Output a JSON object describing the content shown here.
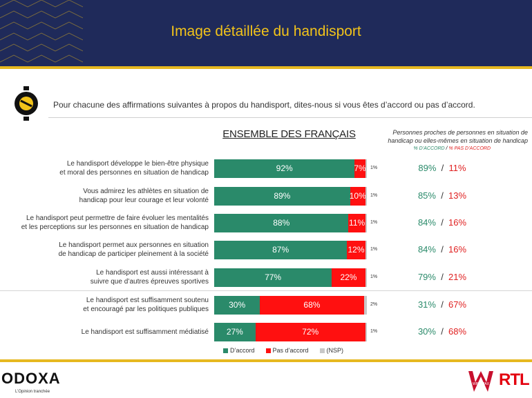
{
  "title": "Image détaillée du handisport",
  "question": "Pour chacune des affirmations suivantes à propos du handisport, dites-nous si vous êtes d’accord ou pas d’accord.",
  "section_heading": "ENSEMBLE DES FRANÇAIS",
  "proches_heading": "Personnes proches de personnes en situation de handicap ou elles-mêmes en situation de handicap",
  "proches_sub_accord": "% D’ACCORD",
  "proches_sub_sep": "/",
  "proches_sub_pas": "% PAS D’ACCORD",
  "brand": {
    "odoxa": "ODOXA",
    "odoxa_tagline": "L’Opinion tranchée",
    "rtl": "RTL",
    "winamax": "WINAMAX"
  },
  "colors": {
    "header_bg": "#1f2a5a",
    "gold": "#e6b820",
    "accord": "#2a8a6a",
    "pas_accord": "#ff1010",
    "nsp": "#c8c8c8"
  },
  "chart_data": {
    "type": "bar",
    "orientation": "horizontal-stacked",
    "title": "ENSEMBLE DES FRANÇAIS",
    "legend": [
      "D’accord",
      "Pas d’accord",
      "(NSP)"
    ],
    "legend_position": "bottom",
    "categories": [
      [
        "Le handisport développe le bien-être physique",
        "et moral des personnes en situation de handicap"
      ],
      [
        "Vous admirez les athlètes en situation de",
        "handicap pour leur courage et leur volonté"
      ],
      [
        "Le handisport peut permettre de faire évoluer les mentalités",
        "et les perceptions sur les personnes en situation de handicap"
      ],
      [
        "Le handisport permet aux personnes en situation",
        "de handicap de participer pleinement à la société"
      ],
      [
        "Le handisport est aussi intéressant à",
        "suivre que d’autres épreuves sportives"
      ],
      [
        "Le handisport est suffisamment soutenu",
        "et encouragé par les politiques publiques"
      ],
      [
        "Le handisport est suffisamment médiatisé"
      ]
    ],
    "series": [
      {
        "name": "D’accord",
        "values": [
          92,
          89,
          88,
          87,
          77,
          30,
          27
        ]
      },
      {
        "name": "Pas d’accord",
        "values": [
          7,
          10,
          11,
          12,
          22,
          68,
          72
        ]
      },
      {
        "name": "(NSP)",
        "values": [
          1,
          1,
          1,
          1,
          1,
          2,
          1
        ]
      }
    ],
    "proches": {
      "accord": [
        89,
        85,
        84,
        84,
        79,
        31,
        30
      ],
      "pas_accord": [
        11,
        13,
        16,
        16,
        21,
        67,
        68
      ]
    },
    "xlim": [
      0,
      100
    ]
  }
}
